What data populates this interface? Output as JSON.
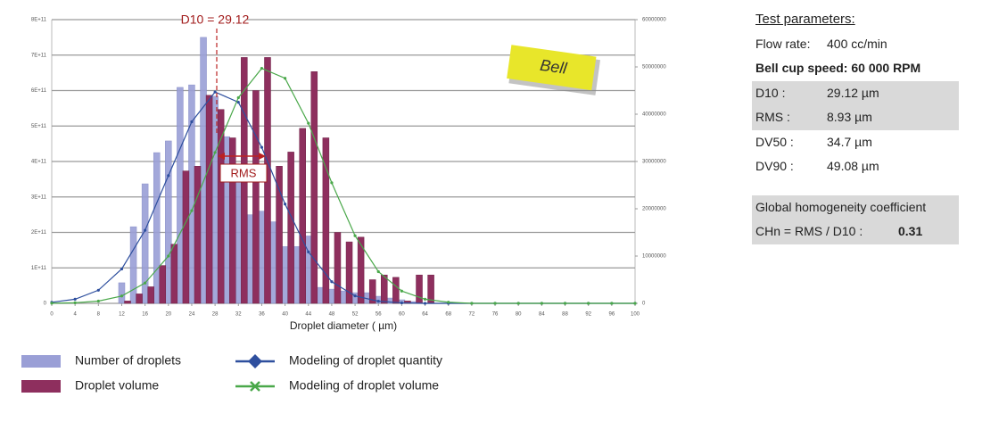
{
  "chart_data": {
    "type": "bar",
    "x_label": "Droplet diameter ( µm)",
    "annotations": {
      "d10": "D10 = 29.12",
      "rms": "RMS",
      "bell": "Bell"
    },
    "xlim": [
      0,
      100
    ],
    "xticks": [
      0,
      4,
      8,
      12,
      16,
      20,
      24,
      28,
      32,
      36,
      40,
      44,
      48,
      52,
      56,
      60,
      64,
      68,
      72,
      76,
      80,
      84,
      88,
      92,
      96,
      100
    ],
    "ylim": [
      0,
      800000000000.0
    ],
    "yticks": [
      0,
      {
        "value": 100000000000.0,
        "label": "1E+11"
      },
      {
        "value": 200000000000.0,
        "label": "2E+11"
      },
      {
        "value": 300000000000.0,
        "label": "3E+11"
      },
      {
        "value": 400000000000.0,
        "label": "4E+11"
      },
      {
        "value": 500000000000.0,
        "label": "5E+11"
      },
      {
        "value": 600000000000.0,
        "label": "6E+11"
      },
      {
        "value": 700000000000.0,
        "label": "7E+11"
      },
      {
        "value": 800000000000.0,
        "label": "8E+11"
      }
    ],
    "y2lim": [
      0,
      60000000
    ],
    "y2ticks": [
      0,
      10000000,
      20000000,
      30000000,
      40000000,
      50000000,
      60000000
    ],
    "grid": true,
    "series": [
      {
        "name": "Number of droplets",
        "kind": "bar",
        "color": "#9a9fd6",
        "x": [
          12,
          14,
          16,
          18,
          20,
          22,
          24,
          26,
          28,
          30,
          32,
          34,
          36,
          38,
          40,
          42,
          44,
          46,
          48,
          50,
          52,
          54,
          56,
          58,
          60,
          62,
          64
        ],
        "values": [
          58000000000.0,
          216000000000.0,
          337000000000.0,
          425000000000.0,
          458000000000.0,
          609000000000.0,
          616000000000.0,
          750000000000.0,
          584000000000.0,
          470000000000.0,
          370000000000.0,
          250000000000.0,
          260000000000.0,
          230000000000.0,
          160000000000.0,
          160000000000.0,
          190000000000.0,
          45000000000.0,
          40000000000.0,
          35000000000.0,
          30000000000.0,
          30000000000.0,
          20000000000.0,
          15000000000.0,
          10000000000.0,
          5000000000.0,
          0
        ]
      },
      {
        "name": "Droplet volume",
        "kind": "bar",
        "axis": "y2",
        "color": "#8e2f5e",
        "x": [
          12,
          14,
          16,
          18,
          20,
          22,
          24,
          26,
          28,
          30,
          32,
          34,
          36,
          38,
          40,
          42,
          44,
          46,
          48,
          50,
          52,
          54,
          56,
          58,
          60,
          62,
          64
        ],
        "values": [
          500000,
          2000000,
          3500000,
          8000000,
          12500000,
          28000000,
          29000000,
          44000000,
          41000000,
          35000000,
          52000000,
          45000000,
          52000000,
          29000000,
          32000000,
          37000000,
          49000000,
          35000000,
          15000000,
          13000000,
          14000000,
          5000000,
          6000000,
          5500000,
          500000,
          6000000,
          6000000
        ]
      },
      {
        "name": "Modeling of droplet quantity",
        "kind": "line",
        "color": "#2e4f9e",
        "x": [
          0,
          4,
          8,
          12,
          16,
          20,
          24,
          28,
          32,
          36,
          40,
          44,
          48,
          52,
          56,
          60,
          64,
          68,
          72,
          76,
          80,
          84,
          88,
          92,
          96,
          100
        ],
        "values": [
          3000000000.0,
          11600000000.0,
          37000000000.0,
          97000000000.0,
          206000000000.0,
          360000000000.0,
          512000000000.0,
          596000000000.0,
          567000000000.0,
          440000000000.0,
          280000000000.0,
          145000000000.0,
          61000000000.0,
          21000000000.0,
          6000000000.0,
          1400000000.0,
          0,
          0,
          0,
          0,
          0,
          0,
          0,
          0,
          0,
          0
        ]
      },
      {
        "name": "Modeling of droplet volume",
        "kind": "line",
        "axis": "y2",
        "color": "#4aa84a",
        "x": [
          0,
          4,
          8,
          12,
          16,
          20,
          24,
          28,
          32,
          36,
          40,
          44,
          48,
          52,
          56,
          60,
          64,
          68,
          72,
          76,
          80,
          84,
          88,
          92,
          96,
          100
        ],
        "values": [
          25000,
          120000,
          470000,
          1550000,
          4300000,
          10000000,
          19600000,
          31900000,
          43500000,
          49700000,
          47600000,
          38100000,
          25500000,
          14300000,
          6700000,
          2600000,
          870000,
          240000,
          0,
          0,
          0,
          0,
          0,
          0,
          0,
          0
        ]
      }
    ]
  },
  "parameters": {
    "title": "Test parameters:",
    "flow": [
      "Flow rate:",
      "400 cc/min"
    ],
    "speed": "Bell cup speed:  60 000 RPM",
    "rows": [
      [
        "D10 :",
        "29.12 µm"
      ],
      [
        "RMS :",
        "8.93 µm"
      ],
      [
        "DV50 :",
        "34.7 µm"
      ],
      [
        "DV90 :",
        "49.08 µm"
      ]
    ],
    "homogeneity": {
      "title": "Global homogeneity coefficient",
      "label": "CHn = RMS / D10 :",
      "value": "0.31"
    }
  }
}
